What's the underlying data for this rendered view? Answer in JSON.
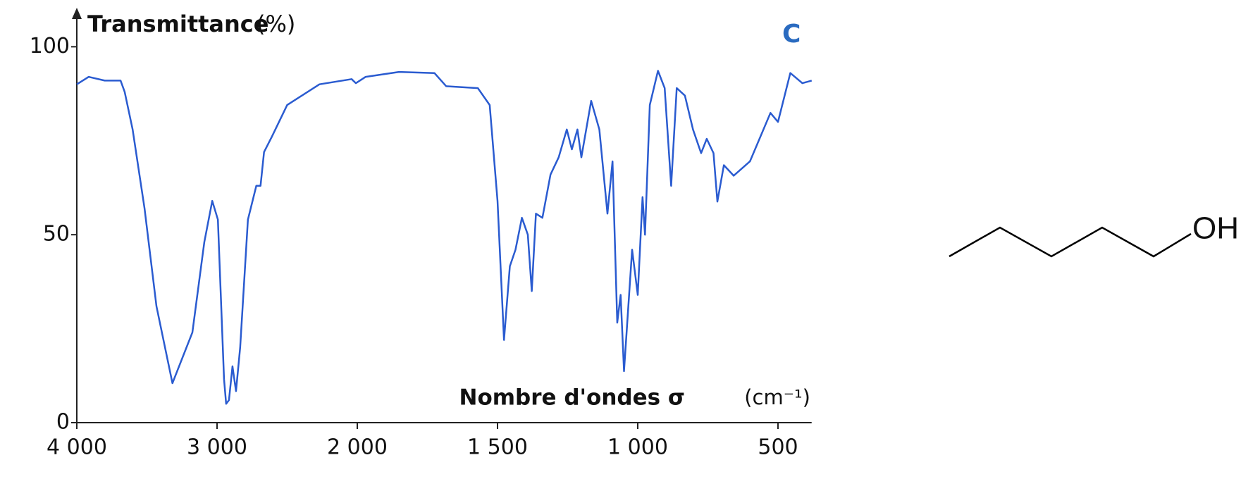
{
  "chart_data": {
    "type": "line",
    "y_label": "Transmittance",
    "y_unit": "(%)",
    "x_label": "Nombre d'ondes σ",
    "x_unit": "(cm⁻¹)",
    "annotation": "C",
    "x": [
      4000,
      3915,
      3801,
      3688,
      3659,
      3602,
      3517,
      3432,
      3318,
      3176,
      3091,
      3034,
      2994,
      2950,
      2935,
      2915,
      2890,
      2865,
      2835,
      2780,
      2720,
      2690,
      2665,
      2610,
      2500,
      2270,
      2040,
      2010,
      1970,
      1851,
      1725,
      1683,
      1570,
      1528,
      1500,
      1477,
      1456,
      1436,
      1413,
      1392,
      1378,
      1363,
      1340,
      1311,
      1282,
      1253,
      1235,
      1215,
      1201,
      1166,
      1137,
      1108,
      1090,
      1073,
      1061,
      1049,
      1020,
      1000,
      983,
      974,
      957,
      928,
      904,
      881,
      861,
      832,
      803,
      774,
      754,
      730,
      716,
      693,
      658,
      600,
      527,
      500,
      456,
      413,
      380
    ],
    "series": [
      {
        "name": "Transmittance",
        "color": "#2a5bd0",
        "values": [
          90,
          92,
          91,
          91,
          88,
          78,
          57,
          31,
          10.5,
          24,
          48,
          59,
          54,
          11.6,
          5,
          6,
          15,
          8.4,
          20,
          54,
          63,
          63,
          72,
          76,
          84.5,
          90,
          91.4,
          90.3,
          92,
          93.3,
          93,
          89.5,
          89,
          84.5,
          59,
          22,
          41.6,
          46,
          54.5,
          50,
          35,
          55.6,
          54.5,
          66,
          70.6,
          78,
          72.7,
          78,
          70.6,
          85.6,
          78,
          55.6,
          69.5,
          26.6,
          34,
          13.7,
          46,
          34,
          60,
          50,
          84.5,
          93.6,
          89,
          63,
          89,
          87,
          78,
          71.7,
          75.5,
          71.7,
          58.8,
          68.5,
          65.7,
          69.5,
          82.4,
          80,
          93,
          90.3,
          91
        ]
      }
    ],
    "xlim": [
      4000,
      380
    ],
    "xticks": [
      {
        "value": 4000,
        "label": "4 000"
      },
      {
        "value": 3000,
        "label": "3 000"
      },
      {
        "value": 2000,
        "label": "2 000"
      },
      {
        "value": 1500,
        "label": "1 500"
      },
      {
        "value": 1000,
        "label": "1 000"
      },
      500
    ],
    "ylim": [
      0,
      110
    ],
    "yticks": [
      0,
      50,
      100
    ]
  },
  "molecule": {
    "label": "OH"
  }
}
